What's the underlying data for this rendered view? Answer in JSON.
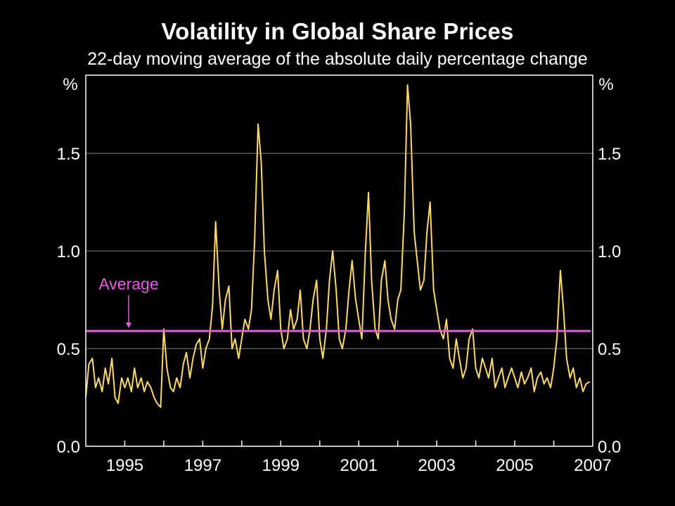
{
  "chart_data": {
    "type": "line",
    "title": "Volatility in Global Share Prices",
    "subtitle": "22-day moving average of the absolute daily percentage change",
    "ylabel_left": "%",
    "ylabel_right": "%",
    "xlim": [
      1994.0,
      2007.0
    ],
    "ylim": [
      0.0,
      1.9
    ],
    "yticks": [
      0.0,
      0.5,
      1.0,
      1.5
    ],
    "ytick_labels": [
      "0.0",
      "0.5",
      "1.0",
      "1.5"
    ],
    "xtick_labels": [
      "1995",
      "1997",
      "1999",
      "2001",
      "2003",
      "2005",
      "2007"
    ],
    "xtick_positions": [
      1995,
      1997,
      1999,
      2001,
      2003,
      2005,
      2007
    ],
    "grid": "horizontal",
    "colors": {
      "series": "#ffd966",
      "average": "#e75ce6",
      "grid": "#7f7f7f",
      "axes": "#ffffff",
      "background": "#000000"
    },
    "series": [
      {
        "x": [
          1994.0,
          1994.08,
          1994.17,
          1994.25,
          1994.33,
          1994.42,
          1994.5,
          1994.58,
          1994.67,
          1994.75,
          1994.83,
          1994.92,
          1995.0,
          1995.08,
          1995.17,
          1995.25,
          1995.33,
          1995.42,
          1995.5,
          1995.58,
          1995.67,
          1995.75,
          1995.83,
          1995.92,
          1996.0,
          1996.08,
          1996.17,
          1996.25,
          1996.33,
          1996.42,
          1996.5,
          1996.58,
          1996.67,
          1996.75,
          1996.83,
          1996.92,
          1997.0,
          1997.08,
          1997.17,
          1997.25,
          1997.33,
          1997.42,
          1997.5,
          1997.58,
          1997.67,
          1997.75,
          1997.83,
          1997.92,
          1998.0,
          1998.08,
          1998.17,
          1998.25,
          1998.33,
          1998.42,
          1998.5,
          1998.58,
          1998.67,
          1998.75,
          1998.83,
          1998.92,
          1999.0,
          1999.08,
          1999.17,
          1999.25,
          1999.33,
          1999.42,
          1999.5,
          1999.58,
          1999.67,
          1999.75,
          1999.83,
          1999.92,
          2000.0,
          2000.08,
          2000.17,
          2000.25,
          2000.33,
          2000.42,
          2000.5,
          2000.58,
          2000.67,
          2000.75,
          2000.83,
          2000.92,
          2001.0,
          2001.08,
          2001.17,
          2001.25,
          2001.33,
          2001.42,
          2001.5,
          2001.58,
          2001.67,
          2001.75,
          2001.83,
          2001.92,
          2002.0,
          2002.08,
          2002.17,
          2002.25,
          2002.33,
          2002.42,
          2002.5,
          2002.58,
          2002.67,
          2002.75,
          2002.83,
          2002.92,
          2003.0,
          2003.08,
          2003.17,
          2003.25,
          2003.33,
          2003.42,
          2003.5,
          2003.58,
          2003.67,
          2003.75,
          2003.83,
          2003.92,
          2004.0,
          2004.08,
          2004.17,
          2004.25,
          2004.33,
          2004.42,
          2004.5,
          2004.58,
          2004.67,
          2004.75,
          2004.83,
          2004.92,
          2005.0,
          2005.08,
          2005.17,
          2005.25,
          2005.33,
          2005.42,
          2005.5,
          2005.58,
          2005.67,
          2005.75,
          2005.83,
          2005.92,
          2006.0,
          2006.08,
          2006.17,
          2006.25,
          2006.33,
          2006.42,
          2006.5,
          2006.58,
          2006.67,
          2006.75,
          2006.83,
          2006.92
        ],
        "values": [
          0.25,
          0.42,
          0.45,
          0.3,
          0.35,
          0.28,
          0.4,
          0.32,
          0.45,
          0.25,
          0.22,
          0.35,
          0.3,
          0.35,
          0.28,
          0.4,
          0.3,
          0.35,
          0.28,
          0.33,
          0.3,
          0.25,
          0.22,
          0.2,
          0.6,
          0.4,
          0.3,
          0.28,
          0.35,
          0.3,
          0.42,
          0.48,
          0.35,
          0.45,
          0.52,
          0.55,
          0.4,
          0.5,
          0.55,
          0.72,
          1.15,
          0.8,
          0.6,
          0.75,
          0.82,
          0.5,
          0.55,
          0.45,
          0.55,
          0.65,
          0.6,
          0.7,
          1.05,
          1.65,
          1.45,
          1.0,
          0.75,
          0.65,
          0.8,
          0.9,
          0.6,
          0.5,
          0.55,
          0.7,
          0.6,
          0.65,
          0.8,
          0.55,
          0.5,
          0.6,
          0.75,
          0.85,
          0.55,
          0.45,
          0.6,
          0.85,
          1.0,
          0.8,
          0.55,
          0.5,
          0.6,
          0.8,
          0.95,
          0.75,
          0.65,
          0.55,
          1.0,
          1.3,
          0.85,
          0.6,
          0.55,
          0.85,
          0.95,
          0.75,
          0.65,
          0.6,
          0.75,
          0.8,
          1.2,
          1.85,
          1.65,
          1.1,
          0.95,
          0.8,
          0.85,
          1.1,
          1.25,
          0.8,
          0.7,
          0.6,
          0.55,
          0.65,
          0.45,
          0.4,
          0.55,
          0.45,
          0.35,
          0.4,
          0.55,
          0.6,
          0.4,
          0.35,
          0.45,
          0.4,
          0.35,
          0.45,
          0.3,
          0.35,
          0.4,
          0.3,
          0.35,
          0.4,
          0.35,
          0.3,
          0.38,
          0.32,
          0.35,
          0.4,
          0.28,
          0.35,
          0.38,
          0.32,
          0.35,
          0.3,
          0.4,
          0.55,
          0.9,
          0.7,
          0.45,
          0.35,
          0.4,
          0.3,
          0.35,
          0.28,
          0.32,
          0.33
        ]
      }
    ],
    "average": {
      "label": "Average",
      "value": 0.59,
      "x_start": 1994.0,
      "x_end": 2006.95,
      "arrow_x": 1995.1
    }
  }
}
